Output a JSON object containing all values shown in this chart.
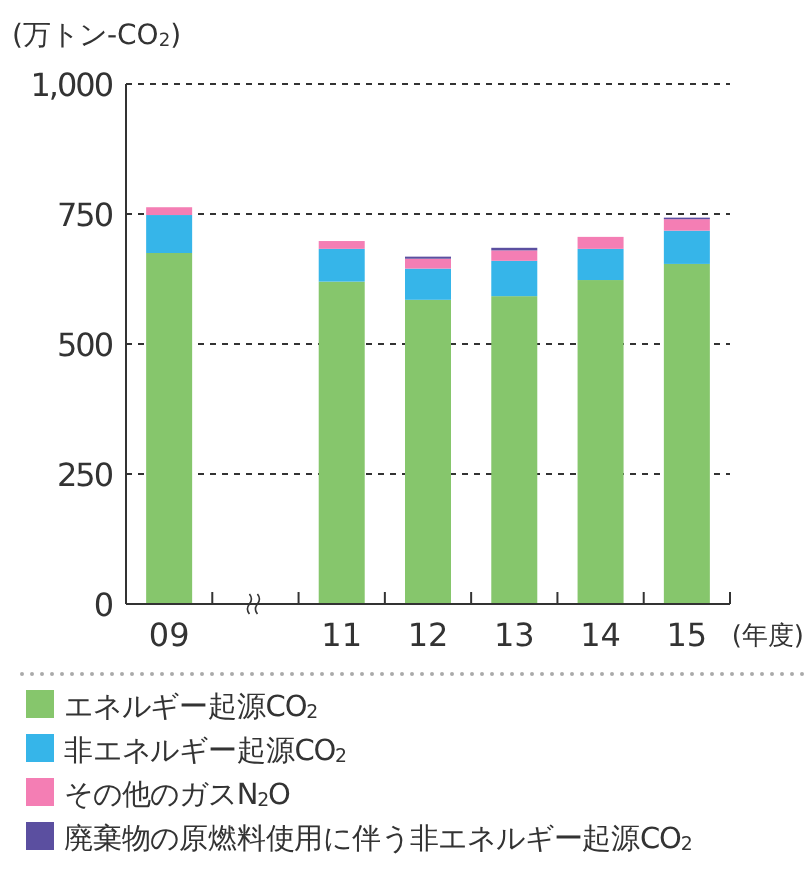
{
  "chart_data": {
    "type": "bar",
    "stacked": true,
    "ylabel": "(万トン-CO$_{2}$)",
    "xlabel": "(年度)",
    "categories": [
      "09",
      null,
      "11",
      "12",
      "13",
      "14",
      "15"
    ],
    "series": [
      {
        "name": "エネルギー起源CO$_{2}$",
        "color": "#86c66c",
        "values": [
          675,
          null,
          620,
          585,
          592,
          623,
          654
        ]
      },
      {
        "name": "非エネルギー起源CO$_{2}$",
        "color": "#36b5e9",
        "values": [
          73,
          null,
          63,
          60,
          68,
          60,
          64
        ]
      },
      {
        "name": "その他のガスN$_{2}$O",
        "color": "#f47eb4",
        "values": [
          15,
          null,
          15,
          19,
          20,
          23,
          22
        ]
      },
      {
        "name": "廃棄物の原燃料使用に伴う非エネルギー起源CO$_{2}$",
        "color": "#5b4fa0",
        "values": [
          0,
          null,
          0,
          4,
          5,
          0,
          3
        ]
      }
    ],
    "ylim": [
      0,
      1000
    ],
    "yticks": [
      0,
      250,
      500,
      750,
      {
        "value": 1000,
        "label": "1,000"
      }
    ],
    "grid": "y",
    "legend": "bottom"
  }
}
